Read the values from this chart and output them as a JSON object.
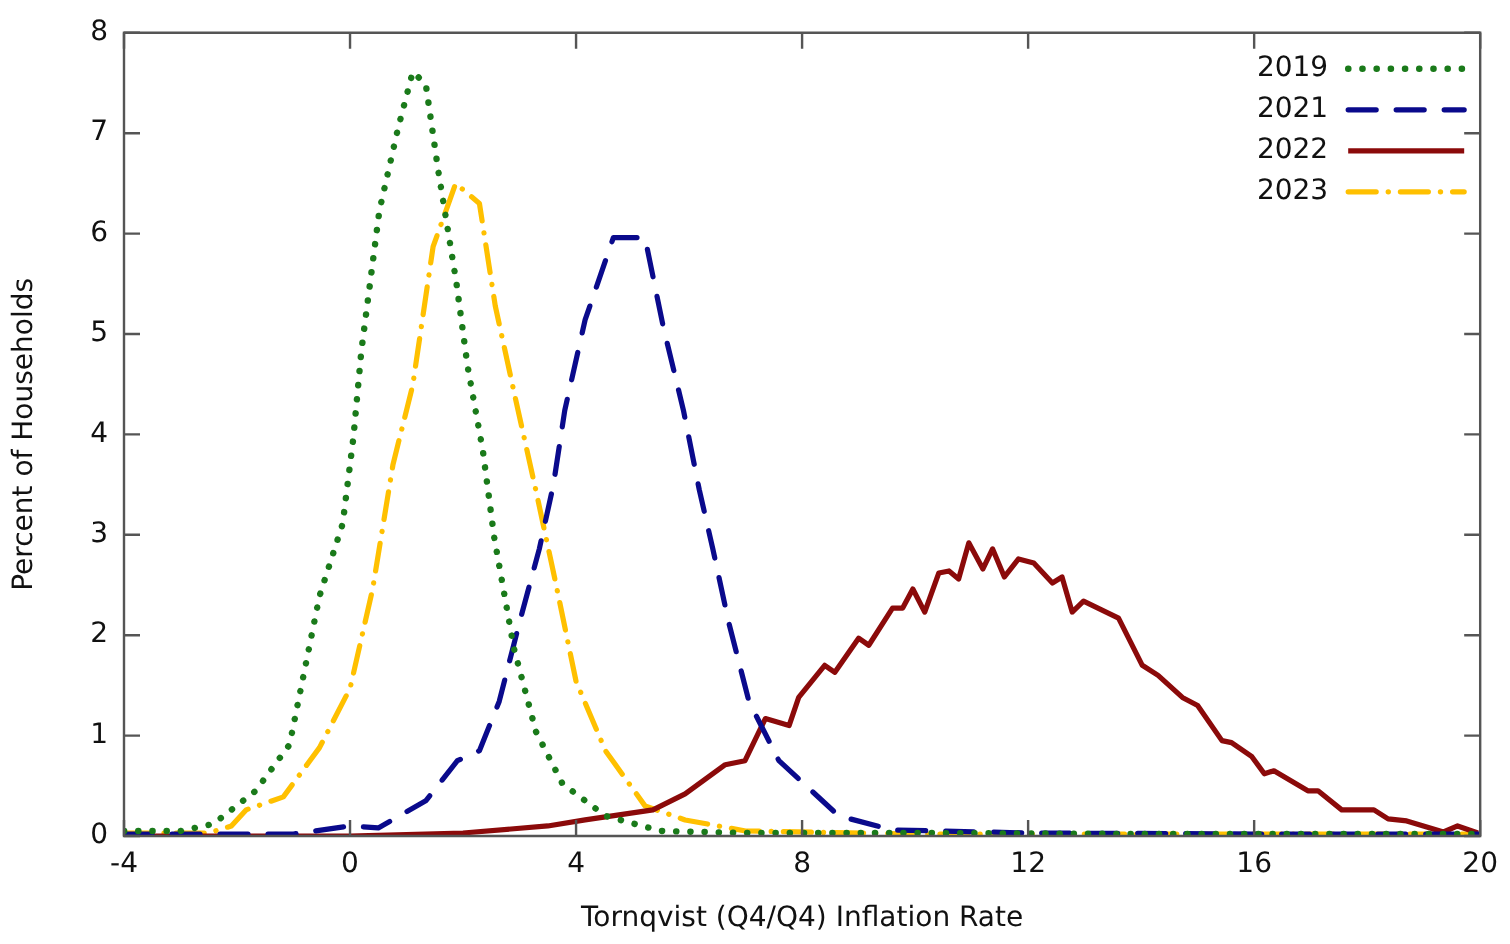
{
  "chart_data": {
    "type": "line",
    "xlabel": "Tornqvist (Q4/Q4) Inflation Rate",
    "ylabel": "Percent of Households",
    "xlim": [
      -4,
      20
    ],
    "xticks": [
      -4,
      0,
      4,
      8,
      12,
      16,
      20
    ],
    "ylim": [
      0,
      8
    ],
    "yticks": [
      0,
      1,
      2,
      3,
      4,
      5,
      6,
      7,
      8
    ],
    "grid": false,
    "legend": "top right",
    "marker": "none",
    "series": [
      {
        "name": "2019",
        "color": "#1a7a1a",
        "line_style": "dotted",
        "x": [
          -4,
          -3,
          -2.42,
          -1.67,
          -1.07,
          -0.54,
          -0.13,
          0.06,
          0.2,
          0.52,
          0.85,
          1.11,
          1.34,
          1.56,
          1.88,
          2.08,
          2.35,
          2.55,
          2.9,
          3.29,
          3.76,
          4.52,
          5.5,
          7,
          10,
          14,
          20
        ],
        "values": [
          0.05,
          0.05,
          0.12,
          0.45,
          0.91,
          2.39,
          3.11,
          3.97,
          4.83,
          6.23,
          7.05,
          7.61,
          7.49,
          6.63,
          5.52,
          4.68,
          3.84,
          2.98,
          1.87,
          1.04,
          0.52,
          0.2,
          0.05,
          0.03,
          0.03,
          0.02,
          0.02
        ]
      },
      {
        "name": "2021",
        "color": "#0a0a8c",
        "line_style": "dashed",
        "x": [
          -4,
          -1,
          0,
          0.5,
          1.34,
          1.9,
          2.29,
          2.64,
          3.0,
          3.35,
          3.6,
          3.8,
          4.16,
          4.66,
          5.22,
          5.54,
          5.9,
          6.18,
          6.42,
          6.7,
          7.06,
          7.59,
          8.65,
          9.6,
          12,
          16,
          20
        ],
        "values": [
          0.02,
          0.02,
          0.1,
          0.08,
          0.35,
          0.75,
          0.85,
          1.34,
          2.13,
          2.86,
          3.5,
          4.24,
          5.14,
          5.96,
          5.96,
          5.08,
          4.24,
          3.45,
          2.86,
          2.13,
          1.34,
          0.75,
          0.2,
          0.06,
          0.03,
          0.02,
          0.02
        ]
      },
      {
        "name": "2022",
        "color": "#8b0a0a",
        "line_style": "solid",
        "x": [
          -4,
          0,
          2,
          3.5,
          4.16,
          5.36,
          5.93,
          6.64,
          6.99,
          7.35,
          7.77,
          7.94,
          8.4,
          8.58,
          9.0,
          9.18,
          9.6,
          9.78,
          9.96,
          10.17,
          10.42,
          10.6,
          10.77,
          10.95,
          11.2,
          11.37,
          11.58,
          11.83,
          12.1,
          12.43,
          12.6,
          12.78,
          12.98,
          13.6,
          14.02,
          14.3,
          14.73,
          15.0,
          15.43,
          15.6,
          15.96,
          16.18,
          16.35,
          16.95,
          17.13,
          17.55,
          18.12,
          18.37,
          18.7,
          19.35,
          19.6,
          19.96
        ],
        "values": [
          0,
          0,
          0.03,
          0.1,
          0.16,
          0.26,
          0.42,
          0.71,
          0.75,
          1.17,
          1.1,
          1.38,
          1.7,
          1.63,
          1.97,
          1.9,
          2.27,
          2.27,
          2.46,
          2.23,
          2.62,
          2.64,
          2.56,
          2.92,
          2.66,
          2.86,
          2.58,
          2.76,
          2.72,
          2.52,
          2.58,
          2.23,
          2.34,
          2.17,
          1.7,
          1.6,
          1.38,
          1.3,
          0.95,
          0.93,
          0.79,
          0.62,
          0.65,
          0.45,
          0.45,
          0.26,
          0.26,
          0.17,
          0.15,
          0.04,
          0.1,
          0.03
        ]
      },
      {
        "name": "2023",
        "color": "#ffc000",
        "line_style": "dashdot",
        "x": [
          -4,
          -2.5,
          -2.1,
          -1.84,
          -1.18,
          -0.54,
          0,
          0.4,
          0.76,
          1.11,
          1.47,
          1.87,
          2.29,
          2.57,
          2.93,
          3.29,
          3.64,
          4.0,
          4.52,
          5.22,
          5.93,
          7,
          10,
          14,
          20
        ],
        "values": [
          0.03,
          0.03,
          0.1,
          0.26,
          0.39,
          0.88,
          1.47,
          2.46,
          3.7,
          4.49,
          5.87,
          6.5,
          6.3,
          5.28,
          4.35,
          3.44,
          2.52,
          1.54,
          0.85,
          0.3,
          0.16,
          0.05,
          0.02,
          0.02,
          0.02
        ]
      }
    ]
  }
}
